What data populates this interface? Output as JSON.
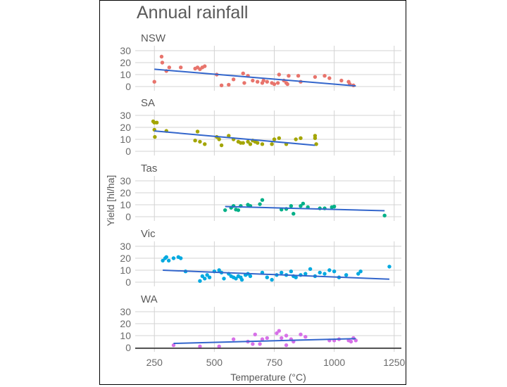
{
  "chart_data": {
    "type": "scatter",
    "title": "Annual rainfall",
    "xlabel": "Temperature (°C)",
    "ylabel": "Yield [hl/ha]",
    "xlim": [
      170,
      1280
    ],
    "ylim": [
      -2,
      33
    ],
    "xticks": [
      250,
      500,
      750,
      1000,
      1250
    ],
    "yticks": [
      0,
      10,
      20,
      30
    ],
    "grid": true,
    "legend": "none",
    "trend_color": "#3366cc",
    "facets": [
      {
        "name": "NSW",
        "color": "#e8746c",
        "trend": [
          [
            250,
            14.5
          ],
          [
            1090,
            0.5
          ]
        ],
        "points": [
          [
            250,
            4
          ],
          [
            280,
            25
          ],
          [
            283,
            20
          ],
          [
            300,
            13
          ],
          [
            312,
            16
          ],
          [
            360,
            16
          ],
          [
            420,
            15
          ],
          [
            430,
            16
          ],
          [
            440,
            14.5
          ],
          [
            450,
            16
          ],
          [
            460,
            17
          ],
          [
            510,
            10
          ],
          [
            530,
            1
          ],
          [
            560,
            1.5
          ],
          [
            580,
            6
          ],
          [
            620,
            11
          ],
          [
            625,
            3
          ],
          [
            640,
            9
          ],
          [
            660,
            5
          ],
          [
            680,
            4
          ],
          [
            700,
            3
          ],
          [
            705,
            5
          ],
          [
            720,
            4
          ],
          [
            740,
            3
          ],
          [
            750,
            2
          ],
          [
            765,
            3
          ],
          [
            770,
            10
          ],
          [
            790,
            5
          ],
          [
            800,
            3
          ],
          [
            805,
            2
          ],
          [
            810,
            9
          ],
          [
            850,
            9
          ],
          [
            860,
            4
          ],
          [
            920,
            8
          ],
          [
            960,
            9
          ],
          [
            980,
            7
          ],
          [
            1030,
            5
          ],
          [
            1060,
            4
          ],
          [
            1065,
            2
          ],
          [
            1080,
            1
          ]
        ]
      },
      {
        "name": "SA",
        "color": "#a3a500",
        "trend": [
          [
            250,
            17
          ],
          [
            920,
            5
          ]
        ],
        "points": [
          [
            245,
            25
          ],
          [
            250,
            24
          ],
          [
            250,
            18
          ],
          [
            252,
            12
          ],
          [
            260,
            24
          ],
          [
            300,
            17
          ],
          [
            420,
            9
          ],
          [
            430,
            16.5
          ],
          [
            440,
            8
          ],
          [
            460,
            6
          ],
          [
            510,
            12
          ],
          [
            520,
            10
          ],
          [
            530,
            5
          ],
          [
            560,
            13
          ],
          [
            580,
            10
          ],
          [
            600,
            8
          ],
          [
            610,
            7
          ],
          [
            620,
            7
          ],
          [
            640,
            8
          ],
          [
            650,
            6
          ],
          [
            660,
            9
          ],
          [
            670,
            8
          ],
          [
            680,
            7
          ],
          [
            700,
            6
          ],
          [
            740,
            6
          ],
          [
            750,
            10
          ],
          [
            770,
            11
          ],
          [
            800,
            6
          ],
          [
            840,
            10
          ],
          [
            860,
            11
          ],
          [
            920,
            13
          ],
          [
            920,
            11
          ],
          [
            925,
            6
          ]
        ]
      },
      {
        "name": "Tas",
        "color": "#00b087",
        "trend": [
          [
            545,
            8.5
          ],
          [
            1210,
            5
          ]
        ],
        "points": [
          [
            545,
            5.5
          ],
          [
            570,
            7.5
          ],
          [
            580,
            9
          ],
          [
            590,
            6
          ],
          [
            600,
            5.5
          ],
          [
            610,
            9
          ],
          [
            640,
            10
          ],
          [
            650,
            9
          ],
          [
            690,
            10.5
          ],
          [
            700,
            14
          ],
          [
            780,
            6
          ],
          [
            800,
            6.5
          ],
          [
            820,
            9
          ],
          [
            830,
            2.5
          ],
          [
            860,
            9
          ],
          [
            870,
            11
          ],
          [
            890,
            8
          ],
          [
            940,
            7
          ],
          [
            960,
            7
          ],
          [
            990,
            8
          ],
          [
            1000,
            8.5
          ],
          [
            1210,
            1
          ]
        ]
      },
      {
        "name": "Vic",
        "color": "#00a9e0",
        "trend": [
          [
            285,
            10
          ],
          [
            1230,
            2.5
          ]
        ],
        "points": [
          [
            285,
            18
          ],
          [
            295,
            20
          ],
          [
            300,
            21
          ],
          [
            310,
            18
          ],
          [
            330,
            20
          ],
          [
            350,
            21
          ],
          [
            360,
            20
          ],
          [
            380,
            9
          ],
          [
            440,
            1
          ],
          [
            450,
            5
          ],
          [
            460,
            3
          ],
          [
            470,
            6
          ],
          [
            480,
            4
          ],
          [
            500,
            9
          ],
          [
            520,
            10
          ],
          [
            530,
            8
          ],
          [
            540,
            3
          ],
          [
            560,
            7
          ],
          [
            570,
            5
          ],
          [
            580,
            4
          ],
          [
            590,
            3
          ],
          [
            600,
            5
          ],
          [
            610,
            4
          ],
          [
            615,
            2
          ],
          [
            630,
            6
          ],
          [
            640,
            7
          ],
          [
            650,
            5
          ],
          [
            700,
            8
          ],
          [
            720,
            4
          ],
          [
            740,
            2
          ],
          [
            760,
            6
          ],
          [
            780,
            8
          ],
          [
            800,
            6
          ],
          [
            820,
            9
          ],
          [
            830,
            5
          ],
          [
            840,
            4
          ],
          [
            860,
            6
          ],
          [
            880,
            7
          ],
          [
            900,
            11
          ],
          [
            920,
            5
          ],
          [
            940,
            8
          ],
          [
            960,
            7
          ],
          [
            980,
            10
          ],
          [
            1000,
            9
          ],
          [
            1020,
            4
          ],
          [
            1050,
            6
          ],
          [
            1100,
            7
          ],
          [
            1110,
            9
          ],
          [
            1230,
            13
          ]
        ]
      },
      {
        "name": "WA",
        "color": "#d771e8",
        "trend": [
          [
            330,
            3.5
          ],
          [
            1090,
            7.5
          ]
        ],
        "points": [
          [
            330,
            2
          ],
          [
            440,
            1
          ],
          [
            520,
            1
          ],
          [
            580,
            7
          ],
          [
            640,
            5
          ],
          [
            660,
            3
          ],
          [
            670,
            11
          ],
          [
            690,
            3
          ],
          [
            700,
            7
          ],
          [
            720,
            8
          ],
          [
            760,
            12
          ],
          [
            770,
            14
          ],
          [
            780,
            8
          ],
          [
            800,
            10
          ],
          [
            800,
            2
          ],
          [
            820,
            7
          ],
          [
            830,
            5
          ],
          [
            860,
            11
          ],
          [
            880,
            9
          ],
          [
            980,
            6
          ],
          [
            1000,
            6
          ],
          [
            1020,
            7
          ],
          [
            1060,
            6
          ],
          [
            1070,
            5
          ],
          [
            1080,
            8
          ],
          [
            1090,
            6
          ]
        ]
      }
    ]
  }
}
